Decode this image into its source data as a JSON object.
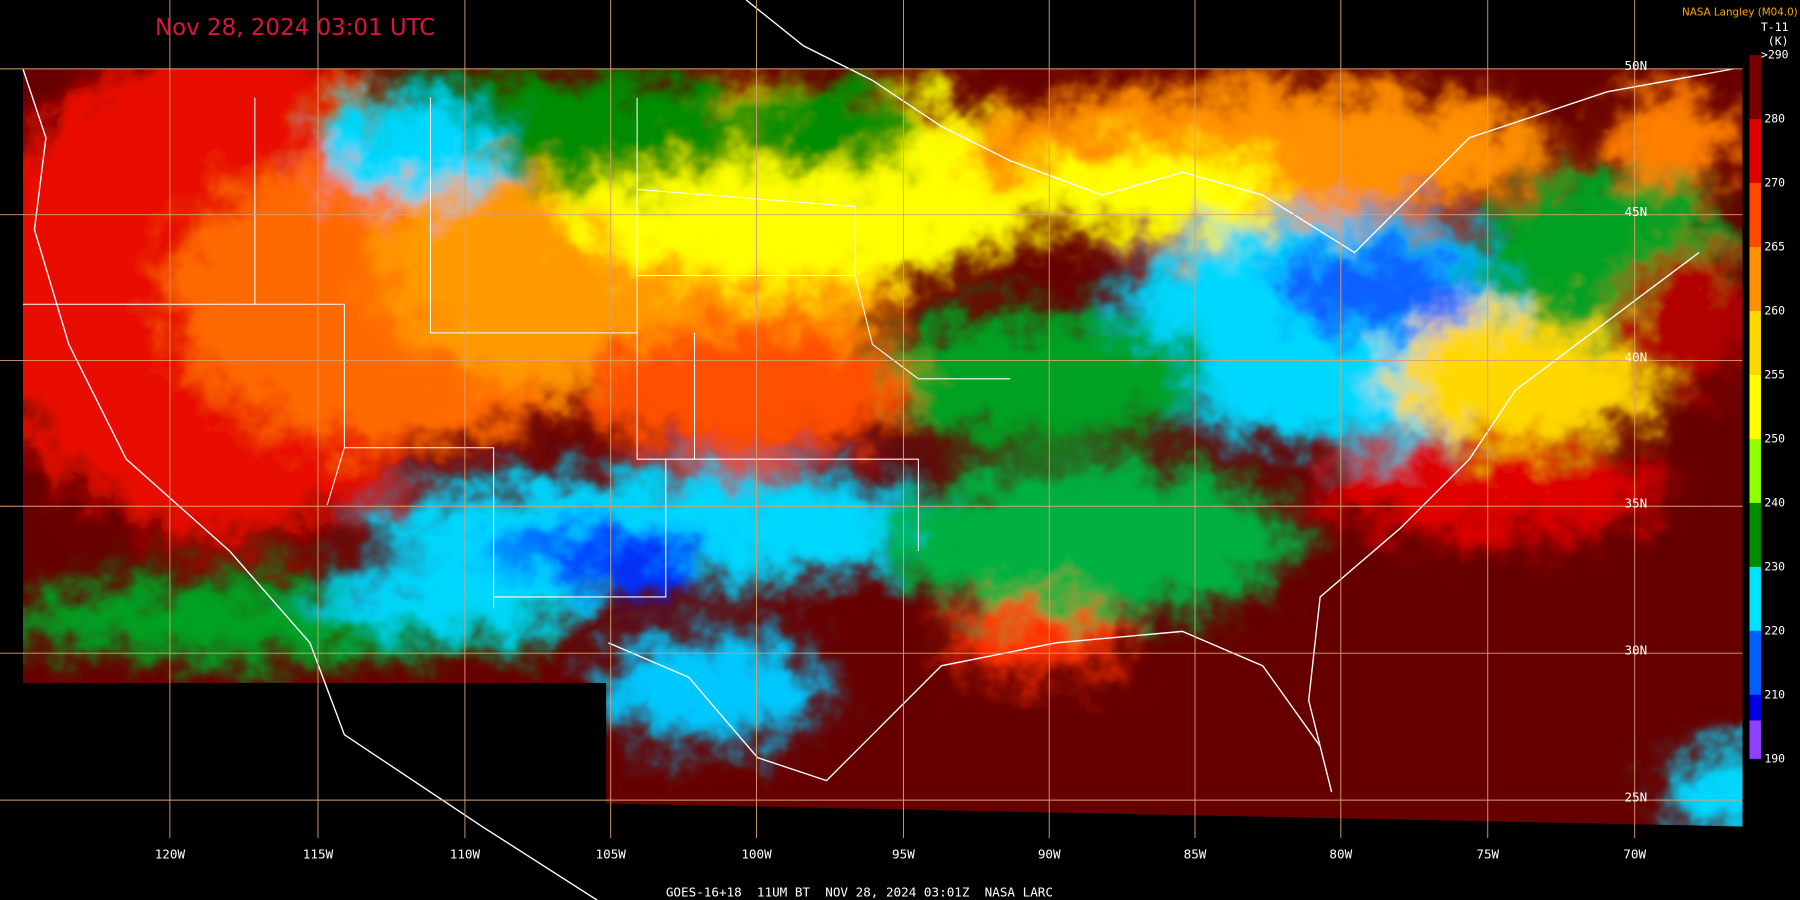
{
  "title": "Nov 28, 2024 03:01 UTC",
  "credit": "NASA Langley (M04.0)",
  "caption": "GOES-16+18  11UM BT  NOV 28, 2024 03:01Z  NASA LARC",
  "colorbar": {
    "name": "T-11",
    "unit": "(K)",
    "ticks": [
      {
        "value": 290,
        "label": ">290"
      },
      280,
      270,
      265,
      260,
      255,
      250,
      240,
      230,
      220,
      210,
      190
    ],
    "colors": [
      "#7a0000",
      "#e00000",
      "#ff4a00",
      "#ff9000",
      "#ffd800",
      "#ffff00",
      "#90ff00",
      "#008c00",
      "#00e0ff",
      "#0060ff",
      "#0000e0"
    ],
    "bottom_color": "#9040ff"
  },
  "longitudes": [
    "120W",
    "115W",
    "110W",
    "105W",
    "100W",
    "95W",
    "90W",
    "85W",
    "80W",
    "75W",
    "70W"
  ],
  "latitudes": [
    "50N",
    "45N",
    "40N",
    "35N",
    "30N",
    "25N"
  ]
}
